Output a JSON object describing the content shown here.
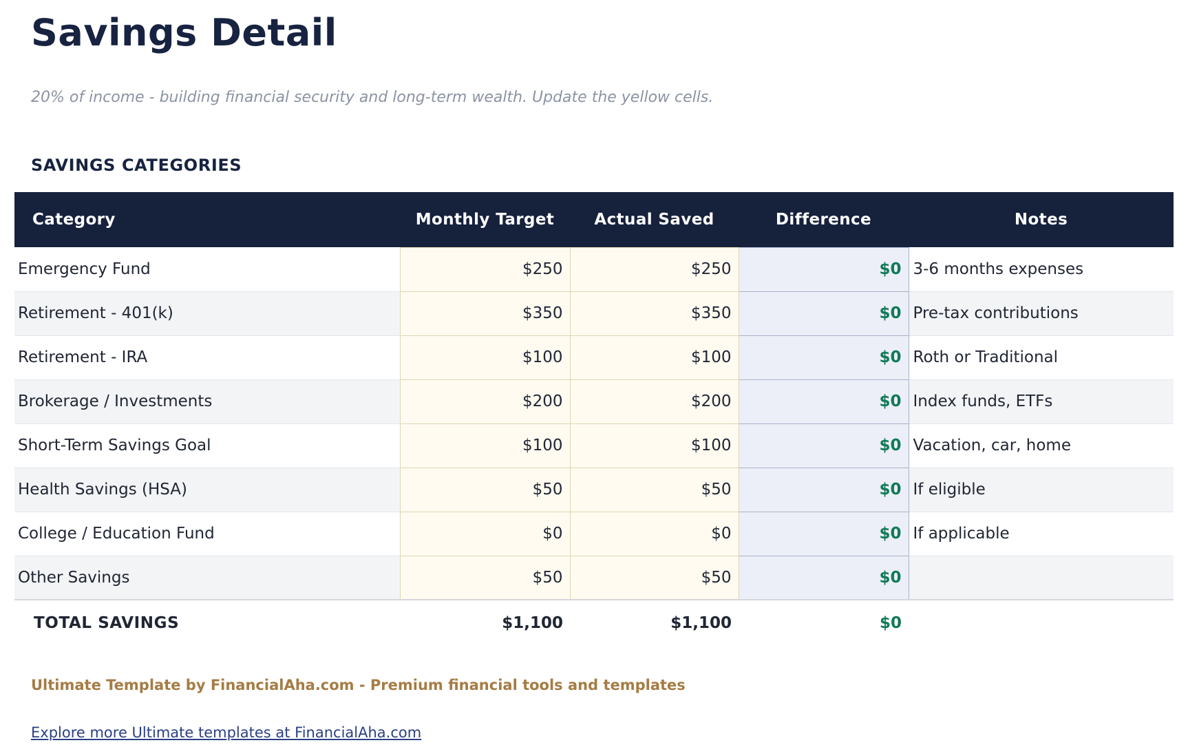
{
  "page": {
    "title": "Savings Detail",
    "subtitle": "20% of income - building financial security and long-term wealth. Update the yellow cells.",
    "section_title": "SAVINGS CATEGORIES"
  },
  "table": {
    "columns": [
      "Category",
      "Monthly Target",
      "Actual Saved",
      "Difference",
      "Notes"
    ],
    "rows": [
      {
        "category": "Emergency Fund",
        "monthly_target": "$250",
        "actual_saved": "$250",
        "difference": "$0",
        "notes": "3-6 months expenses"
      },
      {
        "category": "Retirement - 401(k)",
        "monthly_target": "$350",
        "actual_saved": "$350",
        "difference": "$0",
        "notes": "Pre-tax contributions"
      },
      {
        "category": "Retirement - IRA",
        "monthly_target": "$100",
        "actual_saved": "$100",
        "difference": "$0",
        "notes": "Roth or Traditional"
      },
      {
        "category": "Brokerage / Investments",
        "monthly_target": "$200",
        "actual_saved": "$200",
        "difference": "$0",
        "notes": "Index funds, ETFs"
      },
      {
        "category": "Short-Term Savings Goal",
        "monthly_target": "$100",
        "actual_saved": "$100",
        "difference": "$0",
        "notes": "Vacation, car, home"
      },
      {
        "category": "Health Savings (HSA)",
        "monthly_target": "$50",
        "actual_saved": "$50",
        "difference": "$0",
        "notes": "If eligible"
      },
      {
        "category": "College / Education Fund",
        "monthly_target": "$0",
        "actual_saved": "$0",
        "difference": "$0",
        "notes": "If applicable"
      },
      {
        "category": "Other Savings",
        "monthly_target": "$50",
        "actual_saved": "$50",
        "difference": "$0",
        "notes": ""
      }
    ],
    "total": {
      "label": "TOTAL SAVINGS",
      "monthly_target": "$1,100",
      "actual_saved": "$1,100",
      "difference": "$0"
    }
  },
  "footer": {
    "branding": "Ultimate Template by FinancialAha.com - Premium financial tools and templates",
    "link": "Explore more Ultimate templates at FinancialAha.com"
  },
  "colors": {
    "header_bg": "#16213c",
    "title_text": "#172340",
    "input_cell_bg": "#fffbf0",
    "input_cell_border": "#ddd6b5",
    "calc_cell_bg": "#eceff7",
    "calc_cell_border": "#a9b2c9",
    "positive_value_green": "#117a57",
    "row_alt_gray": "#f3f4f6",
    "subtitle_gray": "#8b93a3",
    "brand_gold": "#a57c44",
    "link_blue": "#2a3f85"
  }
}
